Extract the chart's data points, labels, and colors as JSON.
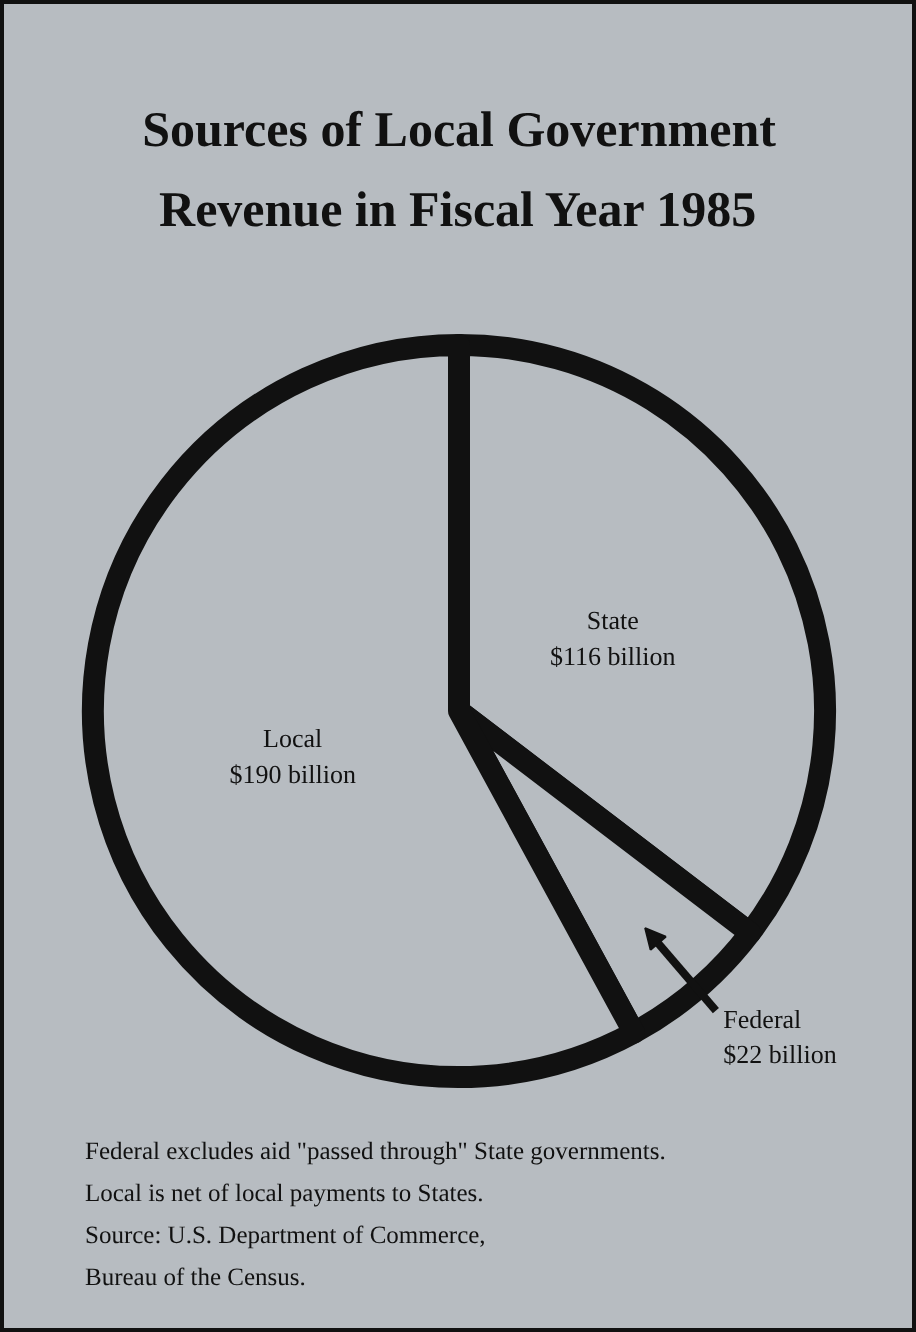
{
  "chart_data": {
    "type": "pie",
    "title": "Sources of Local Government\nRevenue in Fiscal Year 1985",
    "categories": [
      "State",
      "Federal",
      "Local"
    ],
    "values": [
      116,
      22,
      190
    ],
    "value_labels": [
      "$116 billion",
      "$22 billion",
      "$190 billion"
    ],
    "colors": [
      "#b7bcc1",
      "#b7bcc1",
      "#b7bcc1"
    ],
    "annotations": [
      "Federal excludes aid \"passed through\" State governments.",
      "Local is net of local payments to States.",
      "Source: U.S. Department of Commerce,\n            Bureau of the Census."
    ]
  }
}
